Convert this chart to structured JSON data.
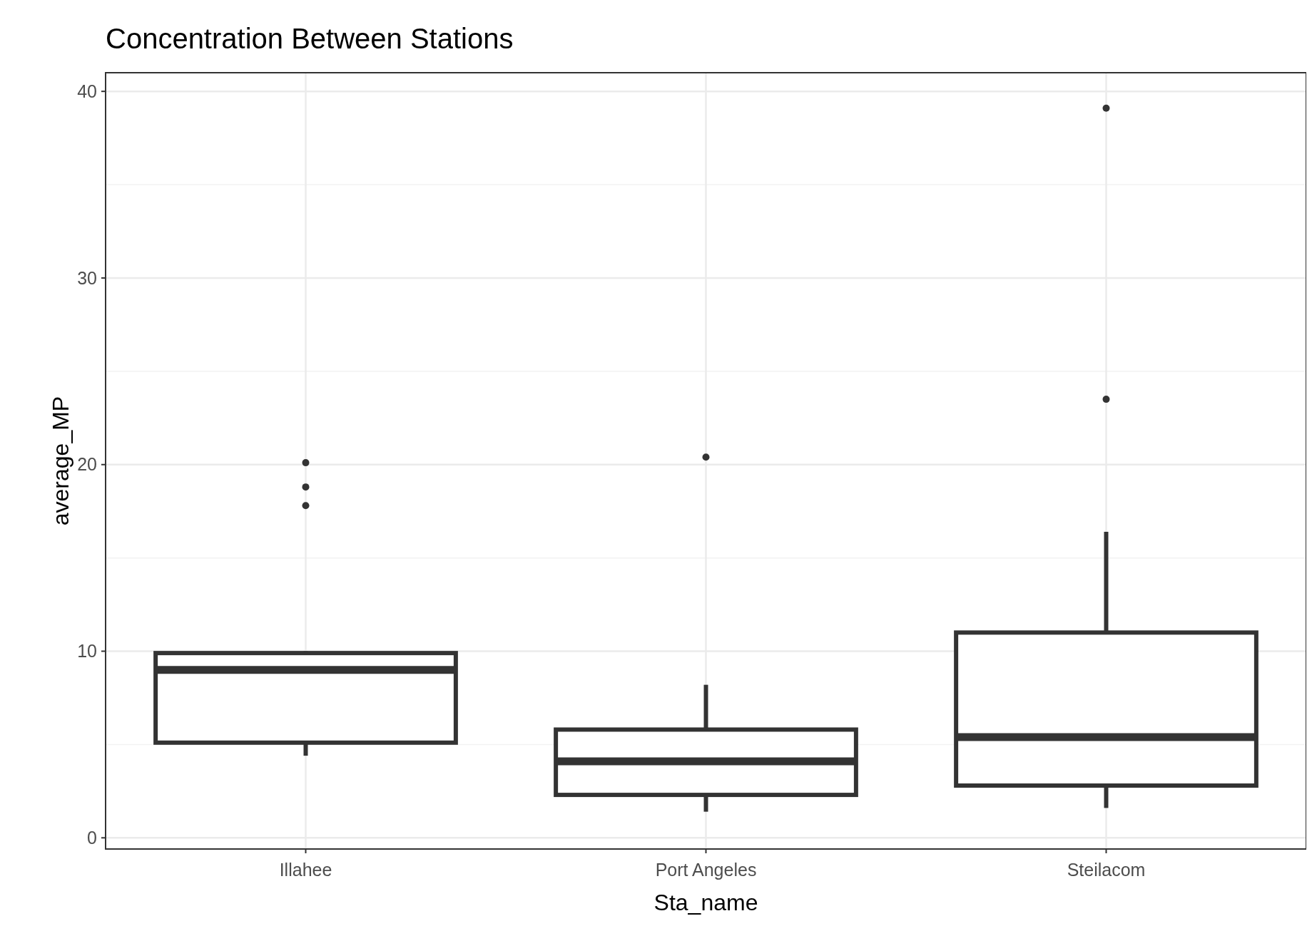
{
  "chart_data": {
    "type": "box",
    "title": "Concentration Between Stations",
    "xlabel": "Sta_name",
    "ylabel": "average_MP",
    "categories": [
      "Illahee",
      "Port Angeles",
      "Steilacom"
    ],
    "boxes": [
      {
        "low": 4.4,
        "q1": 5.1,
        "median": 9.0,
        "q3": 9.9,
        "high": 10.0,
        "outliers": [
          20.1,
          18.8,
          17.8
        ]
      },
      {
        "low": 1.4,
        "q1": 2.3,
        "median": 4.1,
        "q3": 5.8,
        "high": 8.2,
        "outliers": [
          20.4
        ]
      },
      {
        "low": 1.6,
        "q1": 2.8,
        "median": 5.4,
        "q3": 11.0,
        "high": 16.4,
        "outliers": [
          23.5,
          39.1
        ]
      }
    ],
    "color": "#333333",
    "ylim": [
      -0.6,
      41
    ],
    "yticks": [
      0,
      10,
      20,
      30,
      40
    ],
    "grid": true,
    "marker": "circle"
  }
}
